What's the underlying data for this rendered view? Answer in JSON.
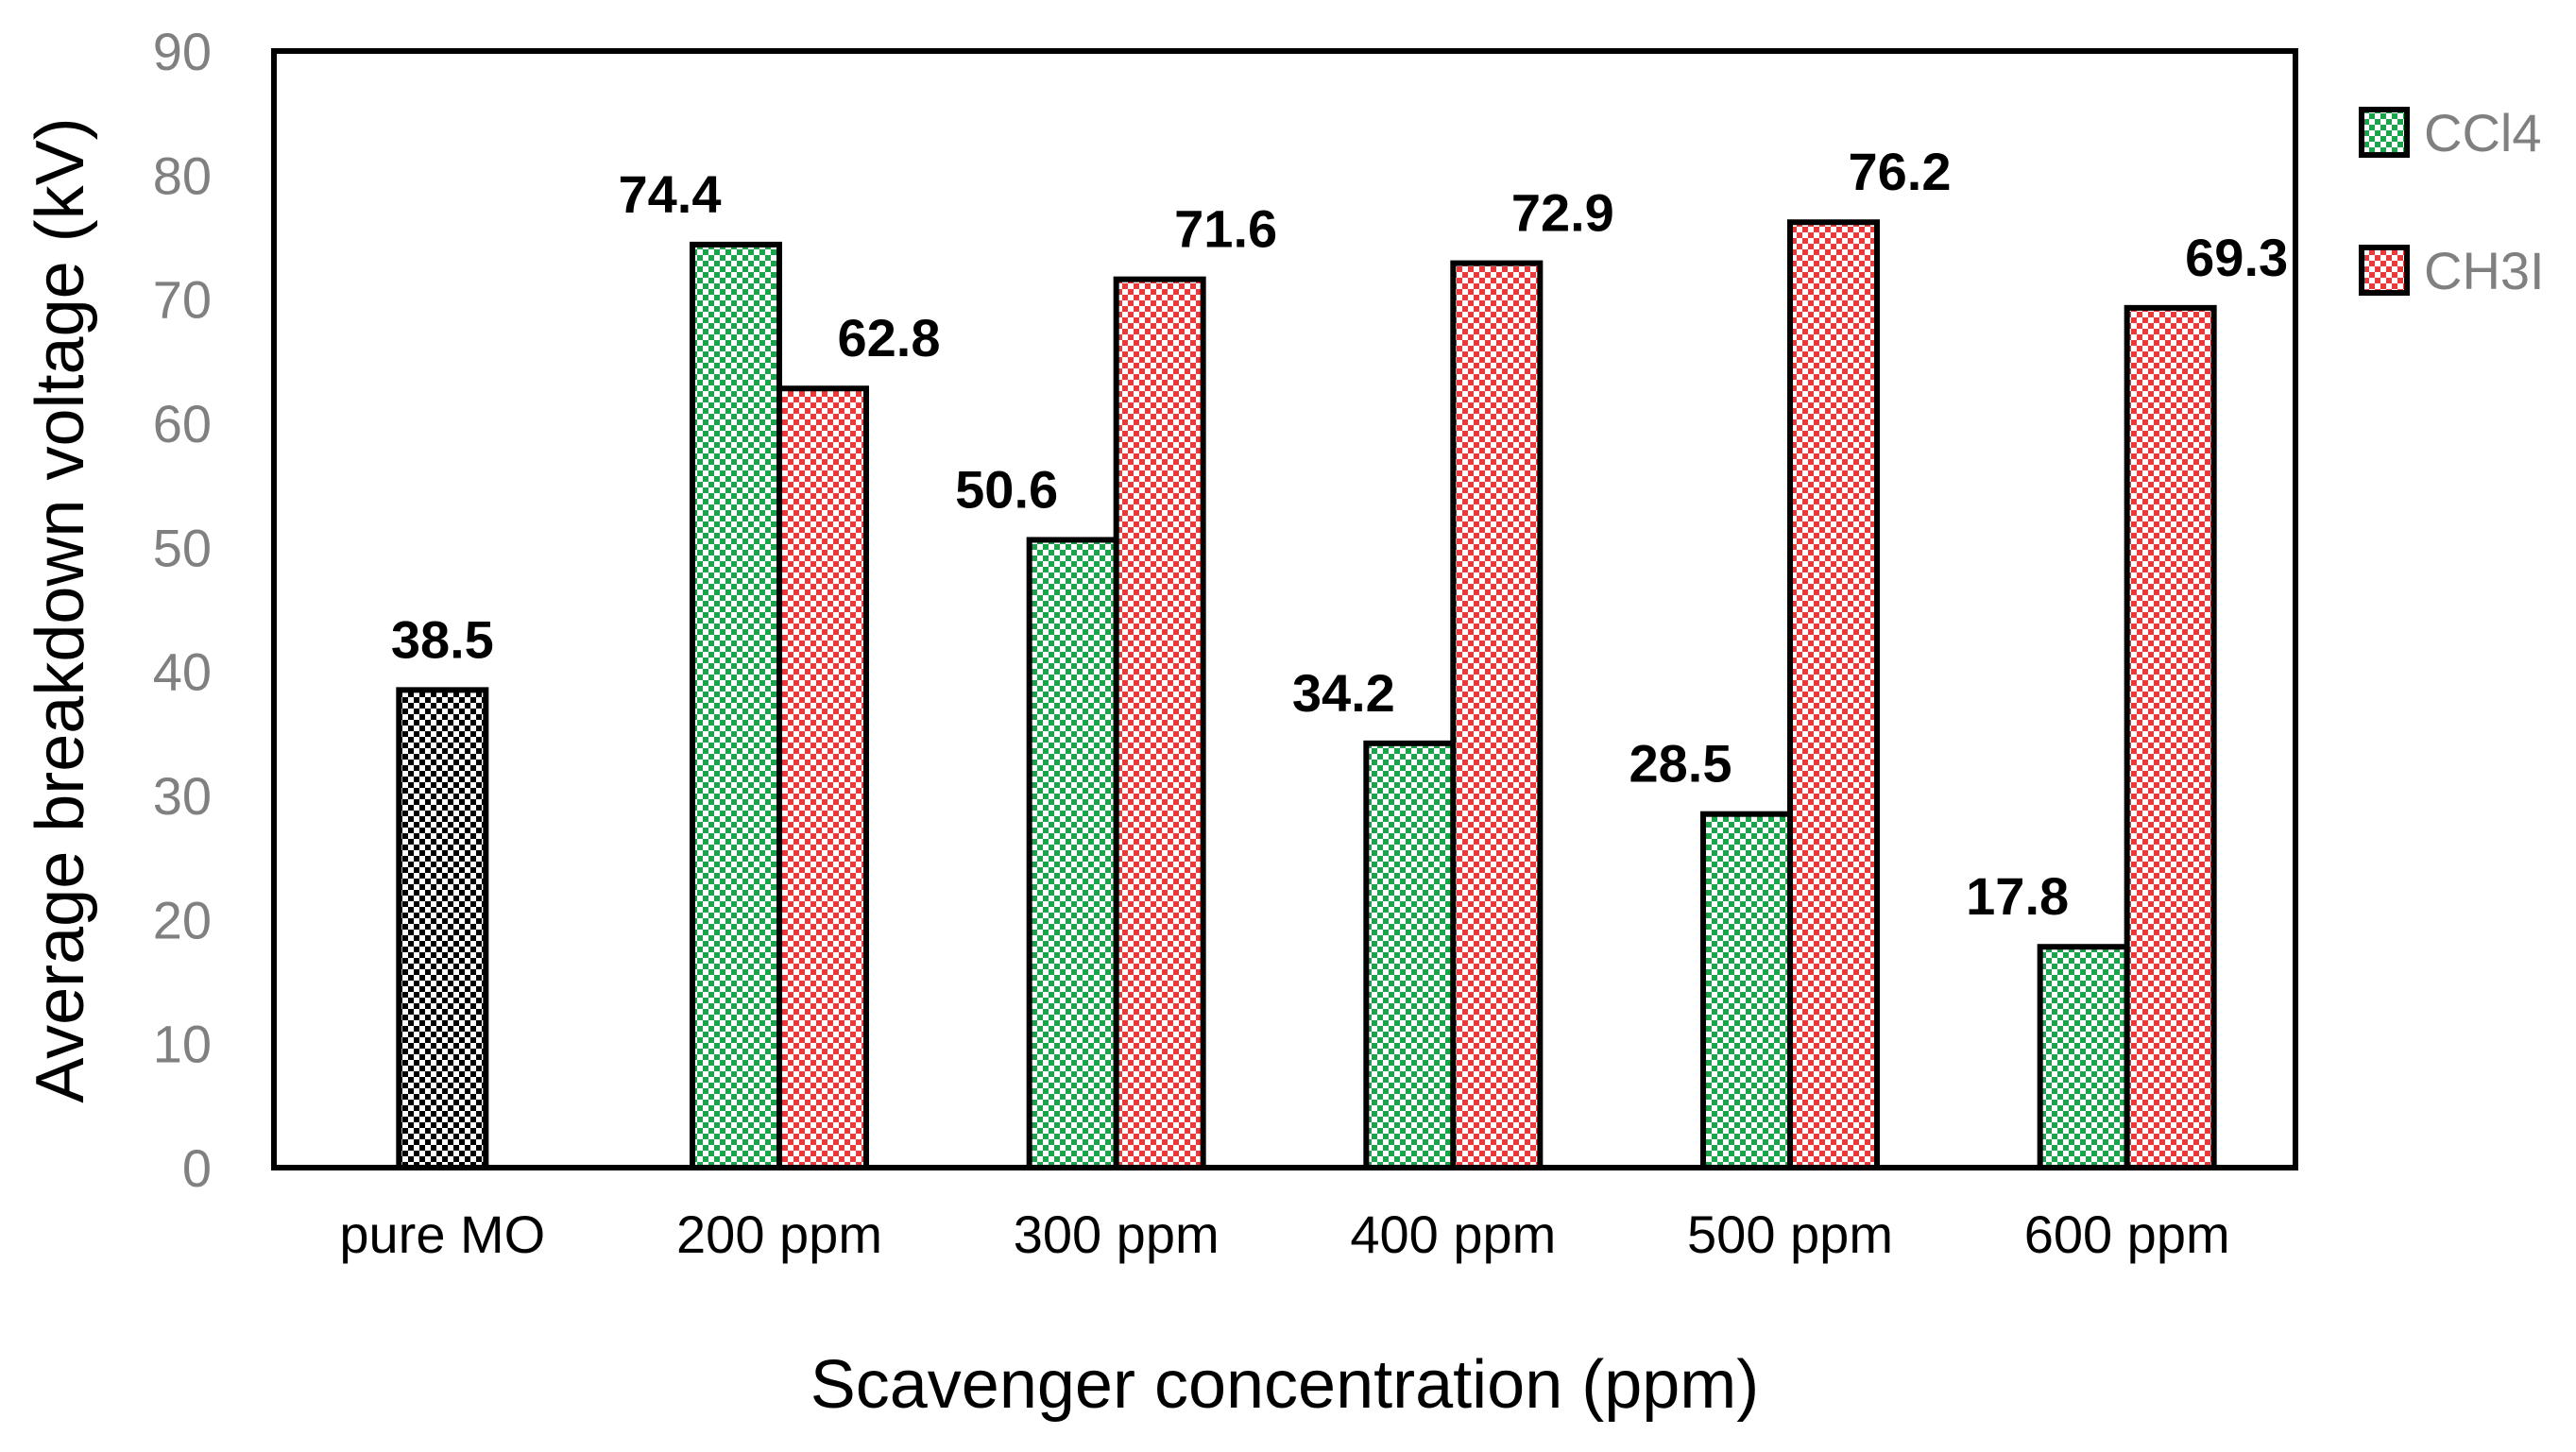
{
  "chart_data": {
    "type": "bar",
    "title": "",
    "xlabel": "Scavenger concentration (ppm)",
    "ylabel": "Average breakdown voltage (kV)",
    "ylim": [
      0,
      90
    ],
    "yticks": [
      0,
      10,
      20,
      30,
      40,
      50,
      60,
      70,
      80,
      90
    ],
    "categories": [
      "pure MO",
      "200 ppm",
      "300 ppm",
      "400 ppm",
      "500 ppm",
      "600 ppm"
    ],
    "series": [
      {
        "name": "pure MO",
        "color": "#000000",
        "in_legend": false,
        "values": [
          38.5,
          null,
          null,
          null,
          null,
          null
        ],
        "labels": [
          "38.5",
          null,
          null,
          null,
          null,
          null
        ]
      },
      {
        "name": "CCl4",
        "color": "#1aa34a",
        "in_legend": true,
        "values": [
          null,
          74.4,
          50.6,
          34.2,
          28.5,
          17.8
        ],
        "labels": [
          null,
          "74.4",
          "50.6",
          "34.2",
          "28.5",
          "17.8"
        ]
      },
      {
        "name": "CH3I",
        "color": "#e83a3a",
        "in_legend": true,
        "values": [
          null,
          62.8,
          71.6,
          72.9,
          76.2,
          69.3
        ],
        "labels": [
          null,
          "62.8",
          "71.6",
          "72.9",
          "76.2",
          "69.3"
        ]
      }
    ],
    "legend": {
      "position": "right",
      "entries": [
        "CCl4",
        "CH3I"
      ]
    },
    "grid": false
  }
}
